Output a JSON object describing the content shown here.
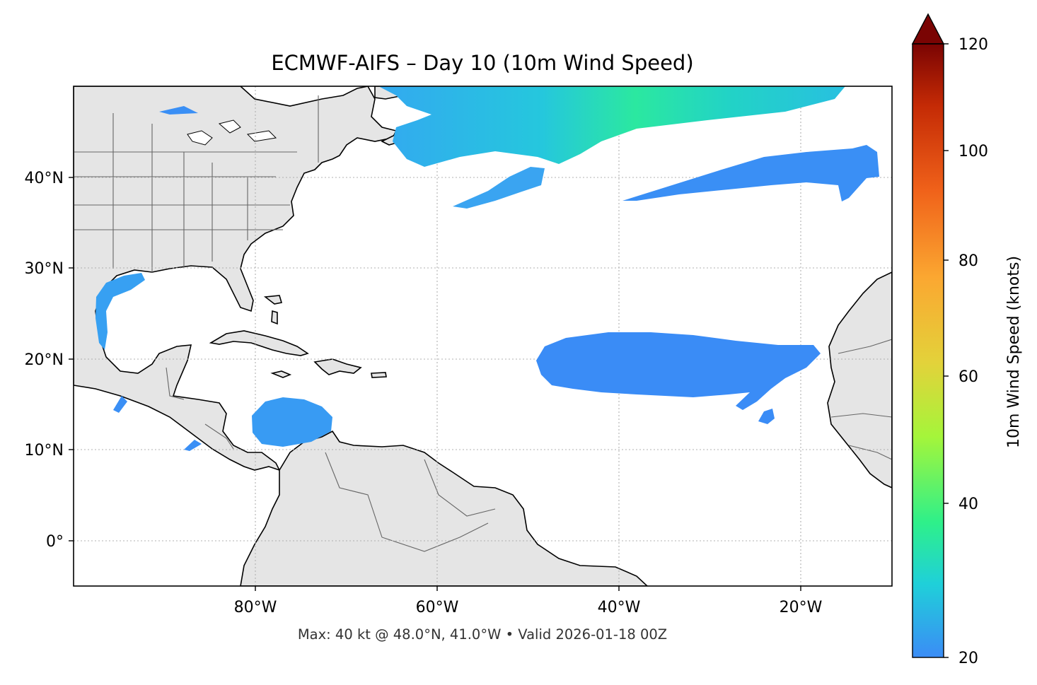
{
  "title": "ECMWF-AIFS – Day 10 (10m Wind Speed)",
  "footnote": "Max: 40 kt @ 48.0°N, 41.0°W • Valid 2026-01-18 00Z",
  "map": {
    "projection": "PlateCarree",
    "lon_range": [
      -100,
      -10
    ],
    "lat_range": [
      -5,
      50
    ],
    "lon_ticks": [
      {
        "value": -80,
        "label": "80°W"
      },
      {
        "value": -60,
        "label": "60°W"
      },
      {
        "value": -40,
        "label": "40°W"
      },
      {
        "value": -20,
        "label": "20°W"
      }
    ],
    "lat_ticks": [
      {
        "value": 40,
        "label": "40°N"
      },
      {
        "value": 30,
        "label": "30°N"
      },
      {
        "value": 20,
        "label": "20°N"
      },
      {
        "value": 10,
        "label": "10°N"
      },
      {
        "value": 0,
        "label": "0°"
      }
    ],
    "gridlines": true,
    "land_color": "#e5e5e5",
    "ocean_color": "#ffffff"
  },
  "colorbar": {
    "label": "10m Wind Speed (knots)",
    "min": 20,
    "max": 120,
    "extend": "max",
    "ticks": [
      {
        "value": 20,
        "label": "20"
      },
      {
        "value": 40,
        "label": "40"
      },
      {
        "value": 60,
        "label": "60"
      },
      {
        "value": 80,
        "label": "80"
      },
      {
        "value": 100,
        "label": "100"
      },
      {
        "value": 120,
        "label": "120"
      }
    ],
    "colormap": "turbo",
    "stops": [
      "#3b8cf6",
      "#1fd0d9",
      "#2ef08a",
      "#a5f53a",
      "#e3d23a",
      "#fba731",
      "#f0621a",
      "#c42a05",
      "#7a0403"
    ]
  },
  "wind_regions": [
    {
      "name": "north-atlantic-jet",
      "max_kt": 40,
      "color": "#2be3a8"
    },
    {
      "name": "west-atlantic-band",
      "max_kt": 26,
      "color": "#35a6f0"
    },
    {
      "name": "central-atlantic-band",
      "max_kt": 22,
      "color": "#3a8ff5"
    },
    {
      "name": "trade-winds-east",
      "max_kt": 21,
      "color": "#3a8cf6"
    },
    {
      "name": "caribbean-low-level-jet",
      "max_kt": 23,
      "color": "#389bf3"
    },
    {
      "name": "gulf-of-mexico",
      "max_kt": 24,
      "color": "#37a0f2"
    }
  ]
}
